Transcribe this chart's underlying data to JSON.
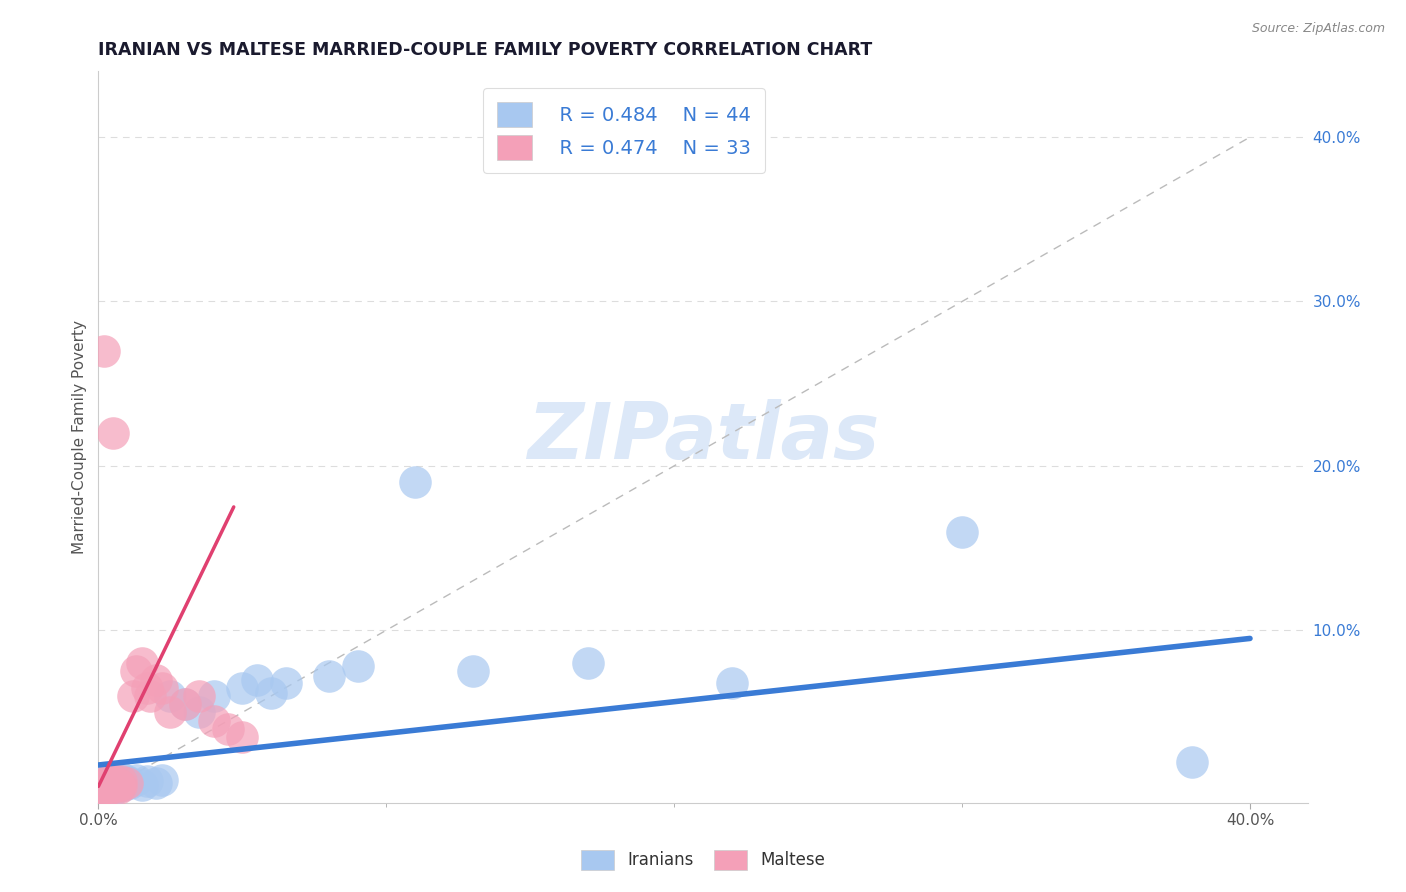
{
  "title": "IRANIAN VS MALTESE MARRIED-COUPLE FAMILY POVERTY CORRELATION CHART",
  "source": "Source: ZipAtlas.com",
  "ylabel": "Married-Couple Family Poverty",
  "xlim": [
    0.0,
    0.42
  ],
  "ylim": [
    -0.005,
    0.44
  ],
  "iranian_R": 0.484,
  "iranian_N": 44,
  "maltese_R": 0.474,
  "maltese_N": 33,
  "blue_color": "#A8C8F0",
  "pink_color": "#F4A0B8",
  "blue_line_color": "#3A7BD5",
  "pink_line_color": "#E04070",
  "legend_text_color": "#3A7BD5",
  "watermark_color": "#DCE8F8",
  "background_color": "#FFFFFF",
  "grid_color": "#CCCCCC",
  "iranians_x": [
    0.001,
    0.001,
    0.002,
    0.002,
    0.002,
    0.003,
    0.003,
    0.003,
    0.004,
    0.004,
    0.004,
    0.005,
    0.005,
    0.005,
    0.006,
    0.006,
    0.007,
    0.007,
    0.008,
    0.008,
    0.009,
    0.01,
    0.011,
    0.013,
    0.015,
    0.017,
    0.02,
    0.022,
    0.025,
    0.03,
    0.035,
    0.04,
    0.05,
    0.055,
    0.06,
    0.065,
    0.08,
    0.09,
    0.11,
    0.13,
    0.17,
    0.22,
    0.3,
    0.38
  ],
  "iranians_y": [
    0.005,
    0.003,
    0.006,
    0.004,
    0.007,
    0.005,
    0.008,
    0.003,
    0.006,
    0.009,
    0.004,
    0.007,
    0.01,
    0.003,
    0.006,
    0.008,
    0.005,
    0.009,
    0.007,
    0.01,
    0.006,
    0.008,
    0.007,
    0.009,
    0.006,
    0.008,
    0.007,
    0.009,
    0.06,
    0.055,
    0.05,
    0.06,
    0.065,
    0.07,
    0.062,
    0.068,
    0.072,
    0.078,
    0.19,
    0.075,
    0.08,
    0.068,
    0.16,
    0.02
  ],
  "maltese_x": [
    0.001,
    0.001,
    0.002,
    0.002,
    0.002,
    0.003,
    0.003,
    0.003,
    0.004,
    0.004,
    0.004,
    0.005,
    0.005,
    0.006,
    0.006,
    0.007,
    0.007,
    0.008,
    0.008,
    0.01,
    0.012,
    0.013,
    0.015,
    0.017,
    0.018,
    0.02,
    0.022,
    0.025,
    0.03,
    0.035,
    0.04,
    0.045,
    0.05
  ],
  "maltese_y": [
    0.005,
    0.003,
    0.006,
    0.004,
    0.27,
    0.005,
    0.008,
    0.003,
    0.006,
    0.009,
    0.004,
    0.22,
    0.007,
    0.005,
    0.008,
    0.004,
    0.006,
    0.005,
    0.008,
    0.007,
    0.06,
    0.075,
    0.08,
    0.065,
    0.06,
    0.07,
    0.065,
    0.05,
    0.055,
    0.06,
    0.045,
    0.04,
    0.035
  ],
  "blue_trend_x": [
    0.0,
    0.4
  ],
  "blue_trend_y": [
    0.018,
    0.095
  ],
  "pink_trend_x": [
    0.0,
    0.047
  ],
  "pink_trend_y": [
    0.005,
    0.175
  ]
}
